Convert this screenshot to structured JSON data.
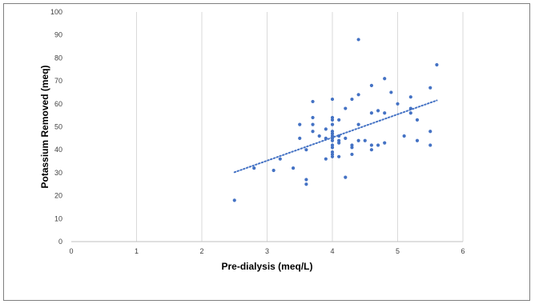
{
  "chart_data": {
    "type": "scatter",
    "title": "",
    "xlabel": "Pre-dialysis (meq/L)",
    "ylabel": "Potassium Removed (meq)",
    "xlim": [
      0,
      6
    ],
    "ylim": [
      0,
      100
    ],
    "x_ticks": [
      "0",
      "1",
      "2",
      "3",
      "4",
      "5",
      "6"
    ],
    "y_ticks": [
      "0",
      "10",
      "20",
      "30",
      "40",
      "50",
      "60",
      "70",
      "80",
      "90",
      "100"
    ],
    "grid": "vertical",
    "legend": "none",
    "marker_color": "#4472c4",
    "series": [
      {
        "points": [
          [
            2.5,
            18
          ],
          [
            2.8,
            32
          ],
          [
            3.1,
            31
          ],
          [
            3.2,
            36
          ],
          [
            3.4,
            32
          ],
          [
            3.5,
            51
          ],
          [
            3.5,
            45
          ],
          [
            3.6,
            40
          ],
          [
            3.6,
            27
          ],
          [
            3.6,
            25
          ],
          [
            3.7,
            61
          ],
          [
            3.7,
            54
          ],
          [
            3.7,
            51
          ],
          [
            3.7,
            48
          ],
          [
            3.8,
            46
          ],
          [
            3.9,
            49
          ],
          [
            3.9,
            45
          ],
          [
            3.9,
            36
          ],
          [
            4.0,
            62
          ],
          [
            4.0,
            54
          ],
          [
            4.0,
            53
          ],
          [
            4.0,
            51
          ],
          [
            4.0,
            48
          ],
          [
            4.0,
            47
          ],
          [
            4.0,
            46
          ],
          [
            4.0,
            45
          ],
          [
            4.0,
            44
          ],
          [
            4.0,
            42
          ],
          [
            4.0,
            41
          ],
          [
            4.0,
            39
          ],
          [
            4.0,
            38
          ],
          [
            4.0,
            37
          ],
          [
            4.1,
            53
          ],
          [
            4.1,
            46
          ],
          [
            4.1,
            44
          ],
          [
            4.1,
            43
          ],
          [
            4.1,
            37
          ],
          [
            4.2,
            58
          ],
          [
            4.2,
            45
          ],
          [
            4.2,
            28
          ],
          [
            4.3,
            62
          ],
          [
            4.3,
            42
          ],
          [
            4.3,
            41
          ],
          [
            4.3,
            38
          ],
          [
            4.4,
            88
          ],
          [
            4.4,
            64
          ],
          [
            4.4,
            51
          ],
          [
            4.4,
            44
          ],
          [
            4.5,
            44
          ],
          [
            4.6,
            68
          ],
          [
            4.6,
            56
          ],
          [
            4.6,
            42
          ],
          [
            4.6,
            40
          ],
          [
            4.7,
            57
          ],
          [
            4.7,
            42
          ],
          [
            4.8,
            71
          ],
          [
            4.8,
            56
          ],
          [
            4.8,
            43
          ],
          [
            4.9,
            65
          ],
          [
            5.0,
            60
          ],
          [
            5.1,
            46
          ],
          [
            5.2,
            63
          ],
          [
            5.2,
            58
          ],
          [
            5.2,
            56
          ],
          [
            5.3,
            53
          ],
          [
            5.3,
            44
          ],
          [
            5.5,
            67
          ],
          [
            5.5,
            48
          ],
          [
            5.5,
            42
          ],
          [
            5.6,
            77
          ]
        ]
      }
    ],
    "trendline": {
      "type": "linear",
      "style": "dotted",
      "x": [
        2.5,
        5.6
      ],
      "y": [
        30.2,
        61.5
      ]
    }
  }
}
